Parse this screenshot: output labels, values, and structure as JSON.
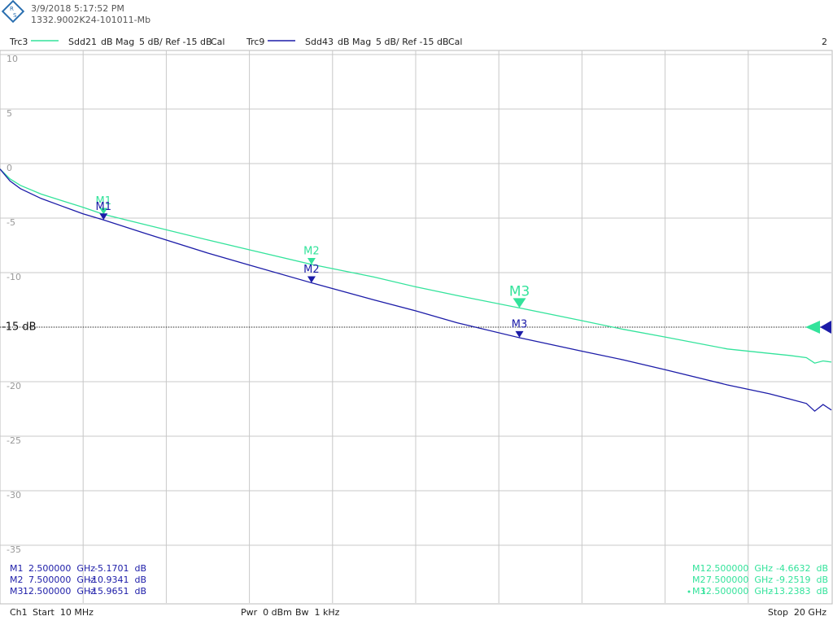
{
  "header": {
    "date": "3/9/2018 5:17:52 PM",
    "device": "1332.9002K24-101011-Mb",
    "window": "2"
  },
  "footer": {
    "channel": "Ch1",
    "start": "Start  10 MHz",
    "power": "Pwr  0 dBm",
    "bandwidth": "Bw  1 kHz",
    "stop": "Stop  20 GHz"
  },
  "chart_data": {
    "type": "line",
    "xlim": [
      0.01,
      20
    ],
    "ylim": [
      -40,
      10
    ],
    "yticks": [
      10,
      5,
      0,
      -5,
      -10,
      {
        "value": -15,
        "label": "-15 dB"
      },
      -20,
      -25,
      -30,
      -35
    ],
    "grid": true,
    "x": [
      0.01,
      0.25,
      0.5,
      1,
      1.5,
      2,
      2.5,
      3.5,
      5,
      6,
      7.5,
      9,
      10,
      11,
      12.5,
      14,
      15,
      16,
      17.5,
      18.5,
      19,
      19.4,
      19.6,
      19.8,
      20
    ],
    "series": [
      {
        "trace": "Trc3",
        "name": "Sdd21",
        "format": "dB Mag",
        "scale": "5 dB/ Ref -15 dB",
        "cal": "Cal",
        "color": "#33e39b",
        "values": [
          -0.5,
          -1.4,
          -2.0,
          -2.8,
          -3.4,
          -4.0,
          -4.66,
          -5.6,
          -7.0,
          -7.9,
          -9.25,
          -10.4,
          -11.3,
          -12.1,
          -13.24,
          -14.4,
          -15.2,
          -15.9,
          -17.0,
          -17.4,
          -17.6,
          -17.8,
          -18.3,
          -18.1,
          -18.2
        ],
        "markers": {
          "names": [
            "M1",
            "M2",
            "M3"
          ],
          "x": [
            2.5,
            7.5,
            12.5
          ],
          "x_labels": [
            "2.500000  GHz",
            "7.500000  GHz",
            "12.500000  GHz"
          ],
          "values": [
            -4.6632,
            -9.2519,
            -13.2383
          ],
          "value_labels": [
            "-4.6632  dB",
            "-9.2519  dB",
            "-13.2383  dB"
          ]
        }
      },
      {
        "trace": "Trc9",
        "name": "Sdd43",
        "format": "dB Mag",
        "scale": "5 dB/ Ref -15 dB",
        "cal": "Cal",
        "color": "#1c1ca8",
        "values": [
          -0.5,
          -1.6,
          -2.3,
          -3.2,
          -3.9,
          -4.6,
          -5.17,
          -6.4,
          -8.2,
          -9.3,
          -10.93,
          -12.5,
          -13.5,
          -14.6,
          -15.97,
          -17.2,
          -18.0,
          -18.9,
          -20.3,
          -21.1,
          -21.6,
          -22.0,
          -22.7,
          -22.1,
          -22.6
        ],
        "markers": {
          "names": [
            "M1",
            "M2",
            "M3"
          ],
          "x": [
            2.5,
            7.5,
            12.5
          ],
          "x_labels": [
            "2.500000  GHz",
            "7.500000  GHz",
            "12.500000  GHz"
          ],
          "values": [
            -5.1701,
            -10.9341,
            -15.9651
          ],
          "value_labels": [
            "-5.1701  dB",
            "-10.9341  dB",
            "-15.9651  dB"
          ]
        }
      }
    ]
  }
}
